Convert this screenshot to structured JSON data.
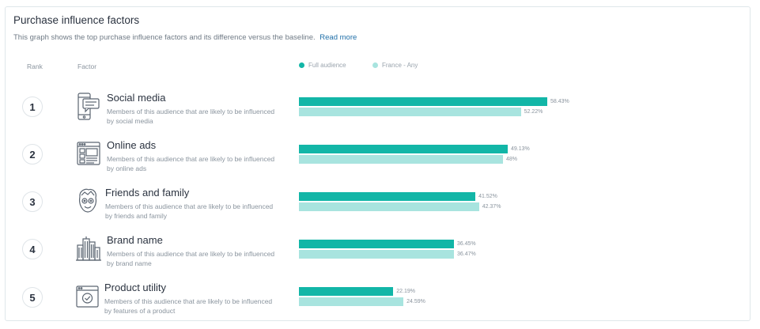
{
  "header": {
    "title": "Purchase influence factors",
    "subtitle": "This graph shows the top purchase influence factors and its difference versus the baseline.",
    "read_more": "Read more"
  },
  "columns": {
    "rank": "Rank",
    "factor": "Factor"
  },
  "legend": [
    {
      "label": "Full audience",
      "color": "#12b6a7"
    },
    {
      "label": "France - Any",
      "color": "#a8e4df"
    }
  ],
  "rows": [
    {
      "rank": "1",
      "name": "Social media",
      "description": "Members of this audience that are likely to be influenced by social media",
      "icon": "smartphone-chat-icon"
    },
    {
      "rank": "2",
      "name": "Online ads",
      "description": "Members of this audience that are likely to be influenced by online ads",
      "icon": "browser-window-icon"
    },
    {
      "rank": "3",
      "name": "Friends and family",
      "description": "Members of this audience that are likely to be influenced by friends and family",
      "icon": "person-face-icon"
    },
    {
      "rank": "4",
      "name": "Brand name",
      "description": "Members of this audience that are likely to be influenced by brand name",
      "icon": "city-buildings-icon"
    },
    {
      "rank": "5",
      "name": "Product utility",
      "description": "Members of this audience that are likely to be influenced by features of a product",
      "icon": "monitor-check-icon"
    }
  ],
  "chart_data": {
    "type": "bar",
    "orientation": "horizontal",
    "categories": [
      "Social media",
      "Online ads",
      "Friends and family",
      "Brand name",
      "Product utility"
    ],
    "series": [
      {
        "name": "Full audience",
        "values": [
          58.43,
          49.13,
          41.52,
          36.45,
          22.19
        ],
        "labels": [
          "58.43%",
          "49.13%",
          "41.52%",
          "36.45%",
          "22.19%"
        ]
      },
      {
        "name": "France - Any",
        "values": [
          52.22,
          48,
          42.37,
          36.47,
          24.59
        ],
        "labels": [
          "52.22%",
          "48%",
          "42.37%",
          "36.47%",
          "24.59%"
        ]
      }
    ],
    "xlim": [
      0,
      58.43
    ],
    "grid": false,
    "legend_position": "top"
  }
}
